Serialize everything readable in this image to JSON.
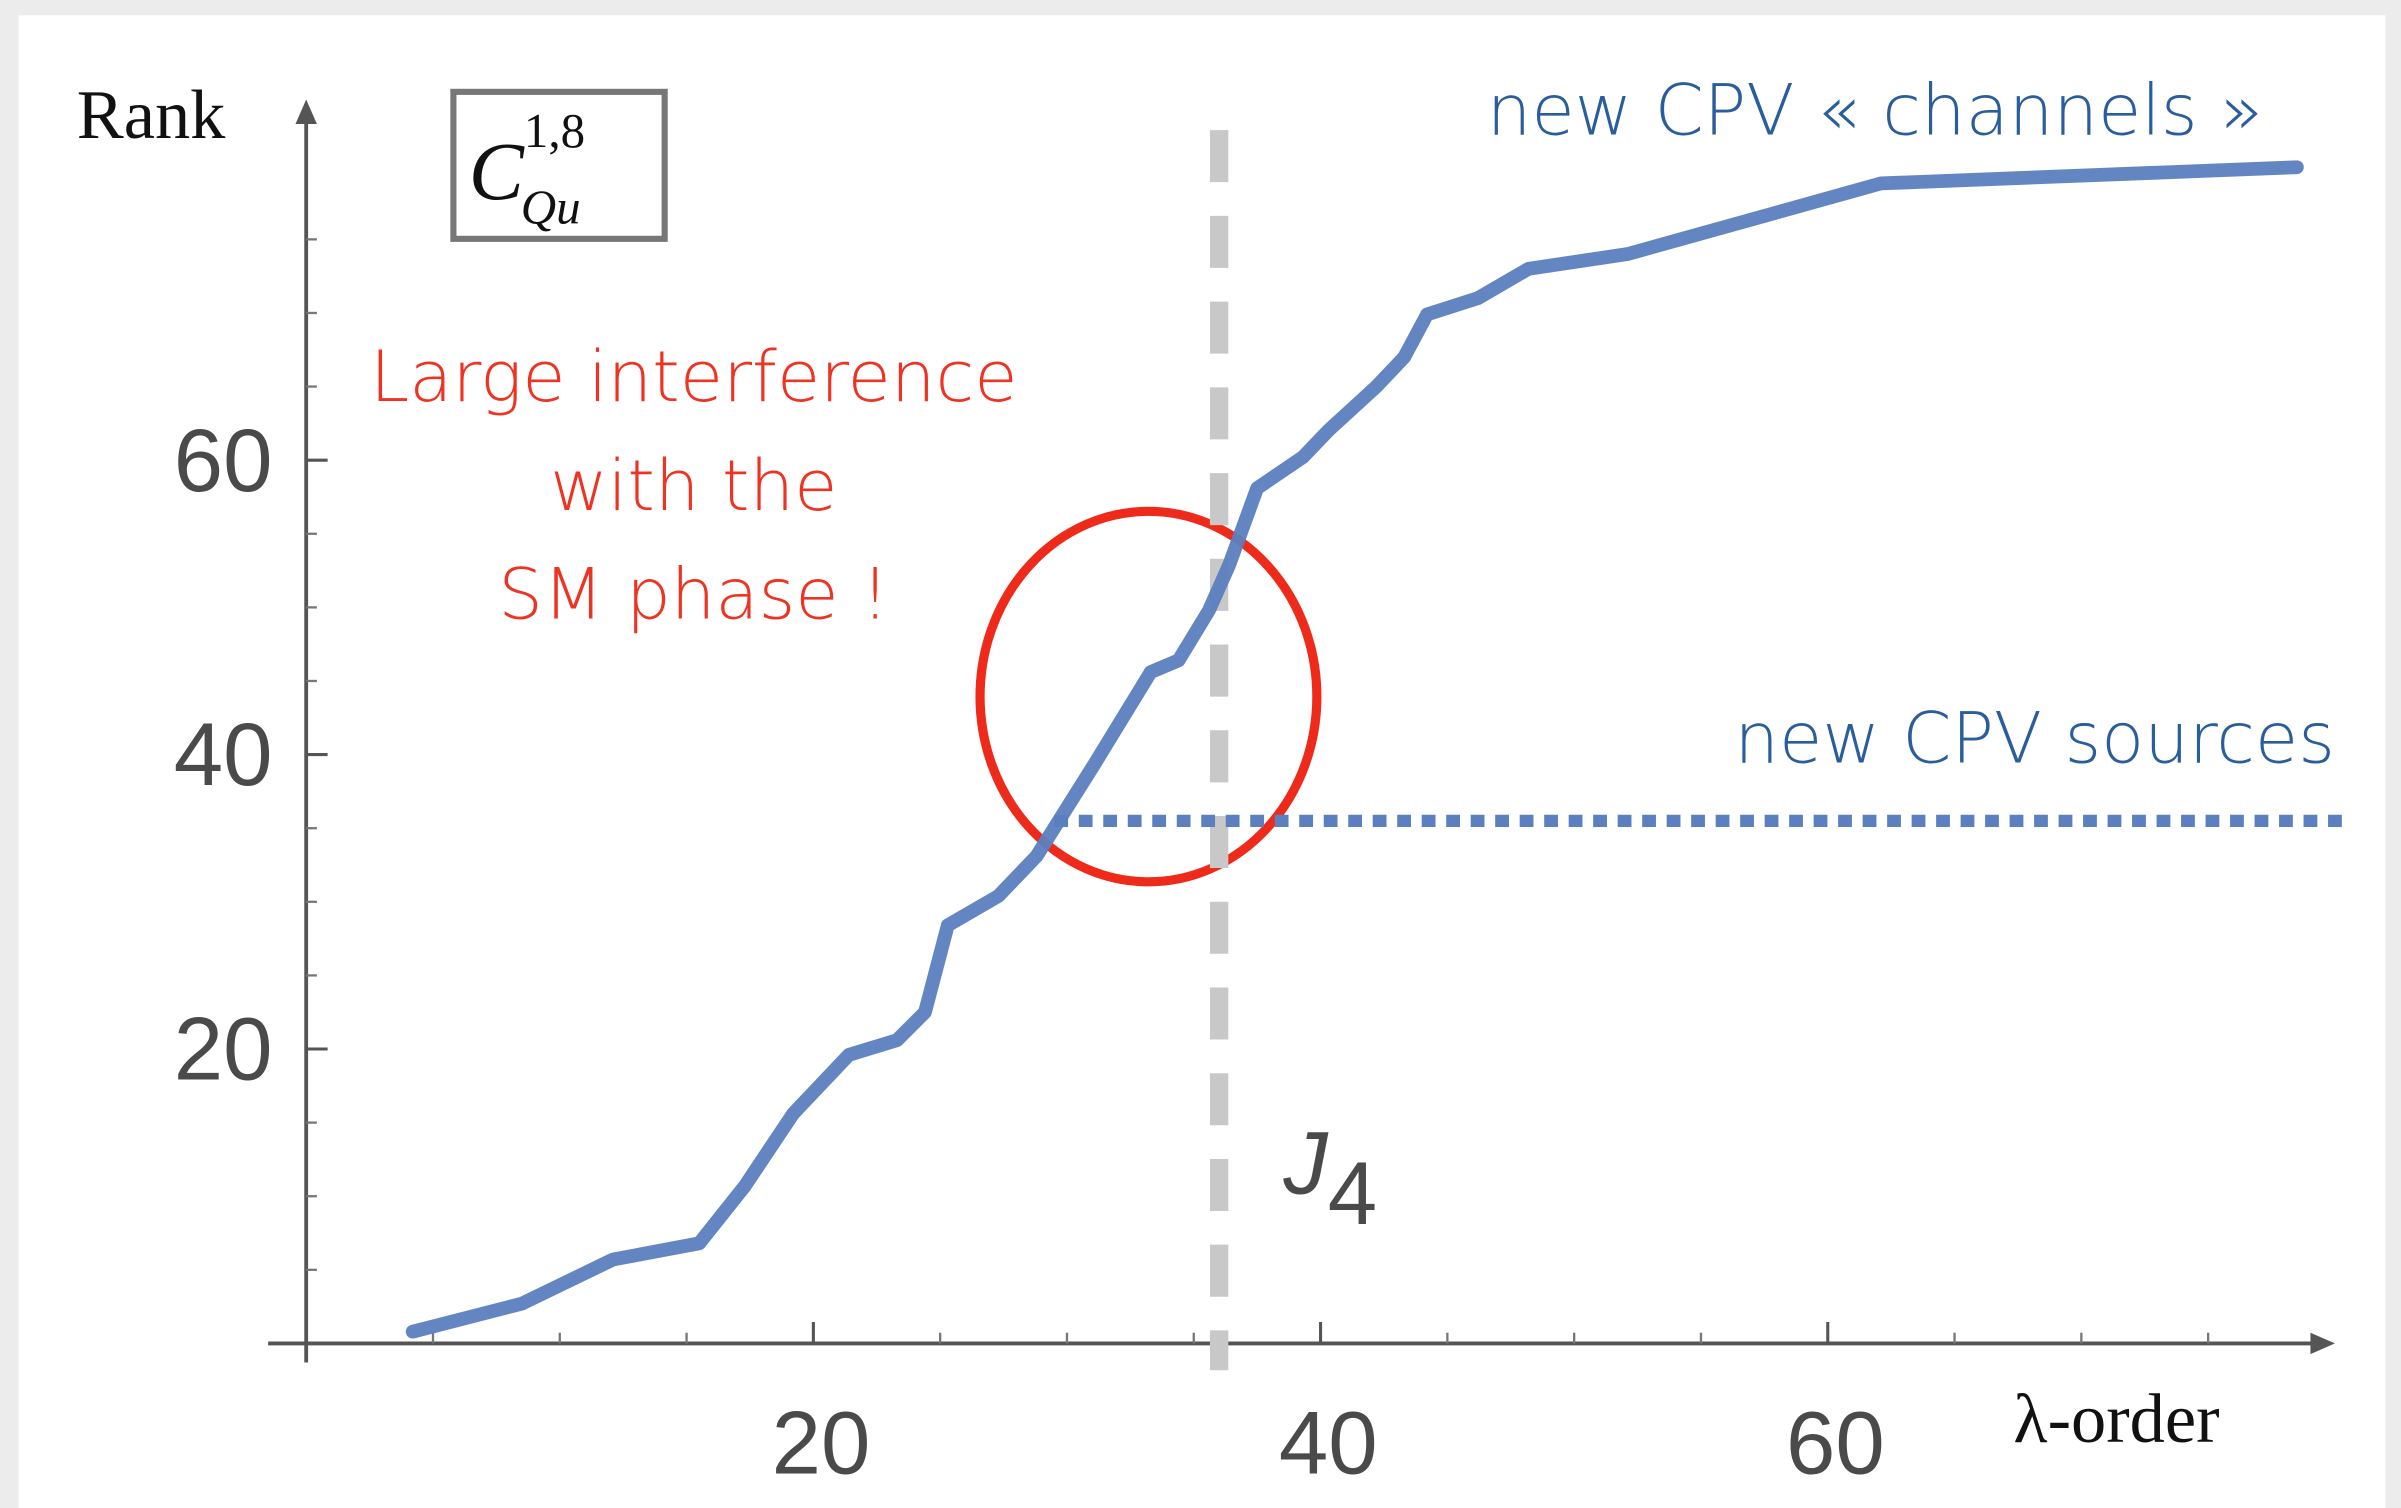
{
  "chart_data": {
    "type": "line",
    "xlabel": "λ-order",
    "ylabel": "Rank",
    "xlim": [
      -1.5,
      80
    ],
    "ylim": [
      -1.3,
      84.5
    ],
    "xticks": [
      20,
      40,
      60
    ],
    "yticks": [
      20,
      40,
      60
    ],
    "minor_xticks": [
      5,
      10,
      15,
      25,
      30,
      35,
      45,
      50,
      55,
      65,
      70,
      75
    ],
    "minor_yticks": [
      5,
      10,
      15,
      25,
      30,
      35,
      45,
      50,
      55,
      65,
      70,
      75
    ],
    "series": [
      {
        "color": "#5b7fbf",
        "x": [
          4.2,
          8.5,
          12.1,
          15.5,
          17.3,
          19.2,
          21.4,
          23.3,
          24.4,
          25.3,
          27.3,
          28.8,
          31.1,
          33.3,
          34.4,
          35.6,
          36.4,
          37.5,
          39.3,
          40.3,
          42.2,
          43.3,
          44.2,
          46.2,
          48.2,
          52.1,
          62.1,
          78.5
        ],
        "values": [
          0.8,
          2.7,
          5.7,
          6.8,
          10.7,
          15.6,
          19.6,
          20.6,
          22.5,
          28.4,
          30.4,
          33.1,
          39.4,
          45.6,
          46.4,
          49.8,
          52.9,
          58.1,
          60.2,
          62,
          65,
          67,
          69.9,
          71,
          73,
          74,
          78.8,
          79.9
        ]
      }
    ],
    "vline": {
      "x": 36,
      "color": "#c8c8c8",
      "label": {
        "text": "J",
        "subscript": "4"
      }
    },
    "hline": {
      "y": 35.5,
      "x_start": 29.5,
      "color": "#5b7fbf"
    },
    "coefficient": {
      "base": "C",
      "subscript": "Qu",
      "superscript": "1,8"
    },
    "annotations": {
      "channels": "new CPV « channels »",
      "sources": "new CPV sources",
      "interference": [
        "Large interference",
        "with the",
        "SM phase !"
      ]
    }
  }
}
